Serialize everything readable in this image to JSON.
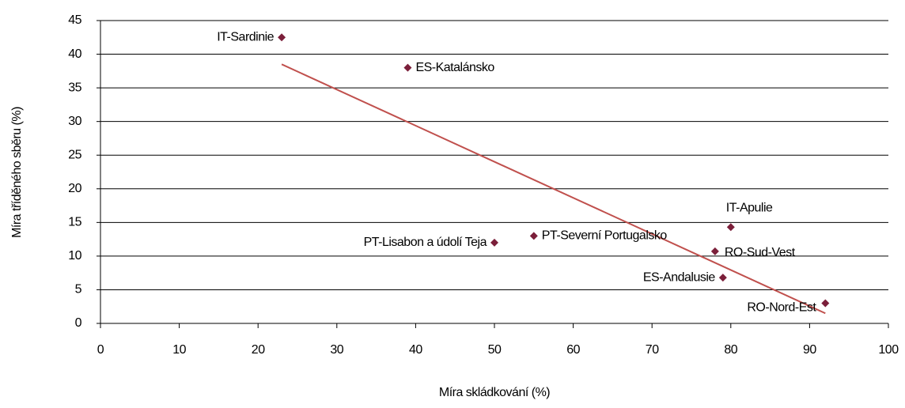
{
  "chart_data": {
    "type": "scatter",
    "x_label": "Míra skládkování (%)",
    "y_label": "Míra tříděného sběru (%)",
    "labels": [
      "IT-Sardinie",
      "ES-Katalánsko",
      "PT-Lisabon a údolí Teja",
      "PT-Severní Portugalsko",
      "IT-Apulie",
      "RO-Sud-Vest",
      "ES-Andalusie",
      "RO-Nord-Est"
    ],
    "x": [
      23,
      39,
      50,
      55,
      80,
      78,
      79,
      92
    ],
    "y": [
      42.5,
      38,
      12,
      13,
      14.3,
      10.7,
      6.8,
      3
    ],
    "color": "#7b1f3a",
    "trend_x": [
      23,
      92
    ],
    "trend_y": [
      38.5,
      1.5
    ],
    "trend_color": "#c0504d",
    "xlim": [
      0,
      100
    ],
    "xticks": [
      0,
      10,
      20,
      30,
      40,
      50,
      60,
      70,
      80,
      90,
      100
    ],
    "ylim": [
      0,
      45
    ],
    "yticks": [
      0,
      5,
      10,
      15,
      20,
      25,
      30,
      35,
      40,
      45
    ],
    "grid": true
  }
}
